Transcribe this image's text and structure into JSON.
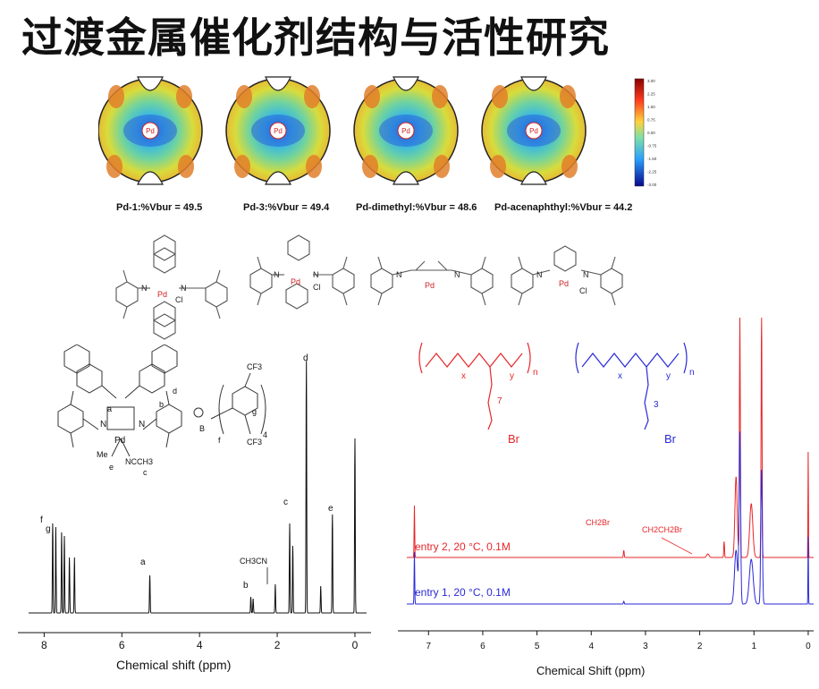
{
  "slide": {
    "title": "过渡金属催化剂结构与活性研究"
  },
  "steric_maps": {
    "center_label": "Pd",
    "colorbar_ticks": [
      "3.00",
      "2.25",
      "1.50",
      "0.75",
      "0.00",
      "-0.75",
      "-1.50",
      "-2.25",
      "-3.00"
    ],
    "labels": [
      {
        "name": "Pd-1",
        "vbur": "49.5"
      },
      {
        "name": "Pd-3",
        "vbur": "49.4"
      },
      {
        "name": "Pd-dimethyl",
        "vbur": "48.6"
      },
      {
        "name": "Pd-acenaphthyl",
        "vbur": "44.2"
      }
    ],
    "label_texts": [
      "Pd-1:%Vbur = 49.5",
      "Pd-3:%Vbur = 49.4",
      "Pd-dimethyl:%Vbur = 48.6",
      "Pd-acenaphthyl:%Vbur = 44.2"
    ]
  },
  "structures": {
    "atom_labels": [
      "N",
      "N",
      "Pd",
      "Cl"
    ]
  },
  "left_nmr": {
    "molecule_labels": {
      "a": "a",
      "b": "b",
      "c": "c",
      "d": "d",
      "e": "e",
      "f": "f",
      "g": "g",
      "me": "Me",
      "ncch3": "NCCH3",
      "pd": "Pd",
      "n1": "N",
      "n2": "N",
      "b_anion": "B",
      "cf3_top": "CF3",
      "cf3_bottom": "CF3",
      "sub4": "4"
    },
    "peak_labels": {
      "f": "f",
      "g": "g",
      "a": "a",
      "b": "b",
      "c": "c",
      "d": "d",
      "e": "e",
      "ch3cn": "CH3CN"
    },
    "xlabel": "Chemical shift (ppm)",
    "xticks": [
      "8",
      "6",
      "4",
      "2",
      "0"
    ]
  },
  "right_nmr": {
    "polymer_labels": {
      "x": "x",
      "y": "y",
      "n": "n",
      "sub7": "7",
      "sub3": "3",
      "br": "Br"
    },
    "entries": [
      {
        "text": "entry 2, 20 °C, 0.1M",
        "color": "#e8262a"
      },
      {
        "text": "entry 1, 20 °C, 0.1M",
        "color": "#2a2ad8"
      }
    ],
    "annotations": [
      "CH2Br",
      "CH2CH2Br"
    ],
    "xlabel": "Chemical Shift (ppm)",
    "xticks": [
      "7",
      "6",
      "5",
      "4",
      "3",
      "2",
      "1",
      "0"
    ]
  }
}
